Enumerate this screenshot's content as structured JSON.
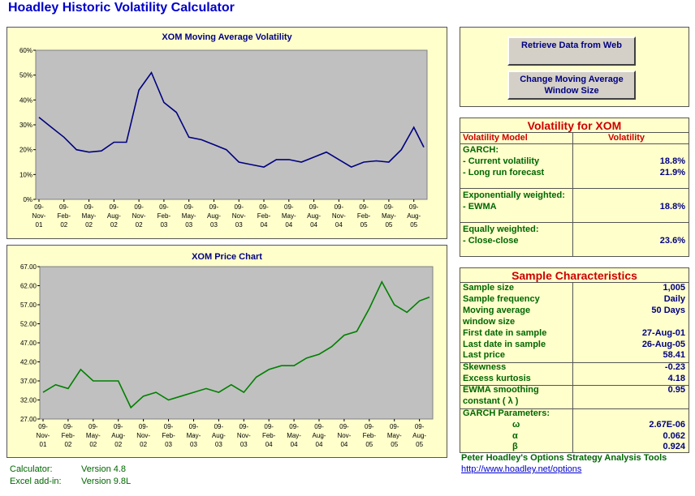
{
  "app": {
    "title": "Hoadley Historic Volatility Calculator"
  },
  "buttons": {
    "retrieve": "Retrieve Data from Web",
    "change_window": "Change Moving Average Window Size"
  },
  "vol_table": {
    "header": "Volatility for XOM",
    "col_model": "Volatility Model",
    "col_vol": "Volatility",
    "garch_label": "GARCH:",
    "current_label": "- Current volatility",
    "current_value": "18.8%",
    "longrun_label": "- Long run forecast",
    "longrun_value": "21.9%",
    "exp_label": "Exponentially weighted:",
    "ewma_label": "- EWMA",
    "ewma_value": "18.8%",
    "eq_label": "Equally weighted:",
    "cc_label": "- Close-close",
    "cc_value": "23.6%"
  },
  "sample": {
    "header": "Sample Characteristics",
    "size_label": "Sample size",
    "size_value": "1,005",
    "freq_label": "Sample frequency",
    "freq_value": "Daily",
    "window_label1": "Moving average",
    "window_label2": "window size",
    "window_value": "50 Days",
    "first_label": "First date in sample",
    "first_value": "27-Aug-01",
    "last_label": "Last date in sample",
    "last_value": "26-Aug-05",
    "price_label": "Last price",
    "price_value": "58.41",
    "skew_label": "Skewness",
    "skew_value": "-0.23",
    "kurt_label": "Excess kurtosis",
    "kurt_value": "4.18",
    "ewma_label1": "EWMA smoothing",
    "ewma_label2": "constant ( λ )",
    "ewma_value": "0.95",
    "garch_label": "GARCH Parameters:",
    "omega_sym": "ω",
    "omega_value": "2.67E-06",
    "alpha_sym": "α",
    "alpha_value": "0.062",
    "beta_sym": "β",
    "beta_value": "0.924"
  },
  "footer": {
    "calc_label": "Calculator:",
    "calc_version": "Version 4.8",
    "addin_label": "Excel add-in:",
    "addin_version": "Version 9.8L",
    "credit": "Peter Hoadley's Options Strategy Analysis Tools",
    "url": "http://www.hoadley.net/options"
  },
  "colors": {
    "panel": "#ffffcc",
    "plot_bg": "#c0c0c0",
    "vol_line": "#000080",
    "price_line": "#008000",
    "title": "#0000cc"
  },
  "chart_data": [
    {
      "type": "line",
      "title": "XOM Moving Average Volatility",
      "ylim": [
        0,
        60
      ],
      "yticks": [
        "0%",
        "10%",
        "20%",
        "30%",
        "40%",
        "50%",
        "60%"
      ],
      "xticks": [
        "09-Nov-01",
        "09-Feb-02",
        "09-May-02",
        "09-Aug-02",
        "09-Nov-02",
        "09-Feb-03",
        "09-May-03",
        "09-Aug-03",
        "09-Nov-03",
        "09-Feb-04",
        "09-May-04",
        "09-Aug-04",
        "09-Nov-04",
        "09-Feb-05",
        "09-May-05",
        "09-Aug-05"
      ],
      "x": [
        0,
        0.5,
        1,
        1.5,
        2,
        2.5,
        3,
        3.5,
        4,
        4.5,
        5,
        5.5,
        6,
        6.5,
        7,
        7.5,
        8,
        8.5,
        9,
        9.5,
        10,
        10.5,
        11,
        11.5,
        12,
        12.5,
        13,
        13.5,
        14,
        14.5,
        15,
        15.4
      ],
      "values": [
        33,
        29,
        25,
        20,
        19,
        19.5,
        23,
        23,
        44,
        51,
        39,
        35,
        25,
        24,
        22,
        20,
        15,
        14,
        13,
        16,
        16,
        15,
        17,
        19,
        16,
        13,
        15,
        15.5,
        15,
        20,
        29,
        21
      ]
    },
    {
      "type": "line",
      "title": "XOM Price Chart",
      "ylim": [
        27,
        67
      ],
      "yticks": [
        "27.00",
        "32.00",
        "37.00",
        "42.00",
        "47.00",
        "52.00",
        "57.00",
        "62.00",
        "67.00"
      ],
      "xticks": [
        "09-Nov-01",
        "09-Feb-02",
        "09-May-02",
        "09-Aug-02",
        "09-Nov-02",
        "09-Feb-03",
        "09-May-03",
        "09-Aug-03",
        "09-Nov-03",
        "09-Feb-04",
        "09-May-04",
        "09-Aug-04",
        "09-Nov-04",
        "09-Feb-05",
        "09-May-05",
        "09-Aug-05"
      ],
      "x": [
        0,
        0.5,
        1,
        1.5,
        2,
        2.5,
        3,
        3.5,
        4,
        4.5,
        5,
        5.5,
        6,
        6.5,
        7,
        7.5,
        8,
        8.5,
        9,
        9.5,
        10,
        10.5,
        11,
        11.5,
        12,
        12.5,
        13,
        13.5,
        14,
        14.5,
        15,
        15.4
      ],
      "values": [
        34,
        36,
        35,
        40,
        37,
        37,
        37,
        30,
        33,
        34,
        32,
        33,
        34,
        35,
        34,
        36,
        34,
        38,
        40,
        41,
        41,
        43,
        44,
        46,
        49,
        50,
        56,
        63,
        57,
        55,
        58,
        59
      ]
    }
  ]
}
